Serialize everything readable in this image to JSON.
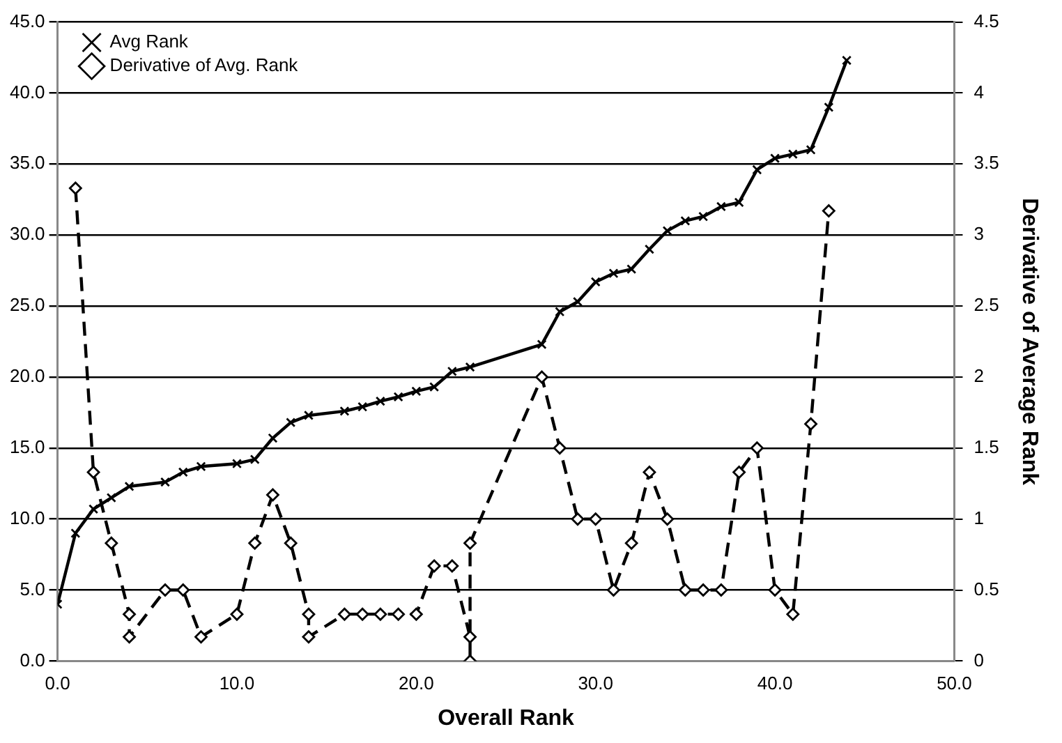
{
  "chart_data": {
    "type": "line",
    "xlabel": "Overall Rank",
    "y2label": "Derivative of Average Rank",
    "xlim": [
      0,
      50
    ],
    "xticks": [
      {
        "value": 0,
        "label": "0.0"
      },
      {
        "value": 10,
        "label": "10.0"
      },
      {
        "value": 20,
        "label": "20.0"
      },
      {
        "value": 30,
        "label": "30.0"
      },
      {
        "value": 40,
        "label": "40.0"
      },
      {
        "value": 50,
        "label": "50.0"
      }
    ],
    "ylim": [
      0,
      45
    ],
    "yticks": [
      {
        "value": 0,
        "label": "0.0"
      },
      {
        "value": 5,
        "label": "5.0"
      },
      {
        "value": 10,
        "label": "10.0"
      },
      {
        "value": 15,
        "label": "15.0"
      },
      {
        "value": 20,
        "label": "20.0"
      },
      {
        "value": 25,
        "label": "25.0"
      },
      {
        "value": 30,
        "label": "30.0"
      },
      {
        "value": 35,
        "label": "35.0"
      },
      {
        "value": 40,
        "label": "40.0"
      },
      {
        "value": 45,
        "label": "45.0"
      }
    ],
    "y2lim": [
      0,
      4.5
    ],
    "y2ticks": [
      0,
      0.5,
      1,
      1.5,
      2,
      2.5,
      3,
      3.5,
      4,
      4.5
    ],
    "grid": "y",
    "legend": "top left",
    "series": [
      {
        "name": "Avg Rank",
        "color": "#000000",
        "marker": "cross",
        "line_style": "solid",
        "x": [
          0,
          1,
          2,
          3,
          4,
          6,
          7,
          8,
          10,
          11,
          12,
          13,
          14,
          16,
          17,
          18,
          19,
          20,
          21,
          22,
          23,
          27,
          28,
          29,
          30,
          31,
          32,
          33,
          34,
          35,
          36,
          37,
          38,
          39,
          40,
          41,
          42,
          43,
          44
        ],
        "values": [
          4.0,
          9.0,
          10.7,
          11.5,
          12.3,
          12.6,
          13.3,
          13.7,
          13.9,
          14.2,
          15.7,
          16.8,
          17.3,
          17.6,
          17.9,
          18.3,
          18.6,
          19.0,
          19.3,
          20.4,
          20.7,
          22.3,
          24.6,
          25.3,
          26.7,
          27.3,
          27.6,
          29.0,
          30.3,
          31.0,
          31.3,
          32.0,
          32.3,
          34.6,
          35.4,
          35.7,
          36.0,
          39.0,
          42.3
        ]
      },
      {
        "name": "Derivative of Avg. Rank",
        "color": "#000000",
        "marker": "diamond",
        "line_style": "dashed",
        "axis": "y2",
        "x": [
          1,
          2,
          3,
          4,
          4,
          6,
          7,
          8,
          10,
          11,
          12,
          13,
          14,
          14,
          16,
          17,
          18,
          19,
          20,
          21,
          22,
          23,
          23,
          23,
          27,
          28,
          29,
          30,
          31,
          32,
          33,
          34,
          35,
          36,
          37,
          38,
          39,
          40,
          41,
          42,
          43
        ],
        "values": [
          3.33,
          1.33,
          0.83,
          0.33,
          0.17,
          0.5,
          0.5,
          0.17,
          0.33,
          0.83,
          1.17,
          0.83,
          0.33,
          0.17,
          0.33,
          0.33,
          0.33,
          0.33,
          0.33,
          0.67,
          0.67,
          0.17,
          0,
          0.83,
          2.0,
          1.5,
          1.0,
          1.0,
          0.5,
          0.83,
          1.33,
          1.0,
          0.5,
          0.5,
          0.5,
          1.33,
          1.5,
          0.5,
          0.33,
          1.67,
          3.17
        ]
      }
    ]
  }
}
